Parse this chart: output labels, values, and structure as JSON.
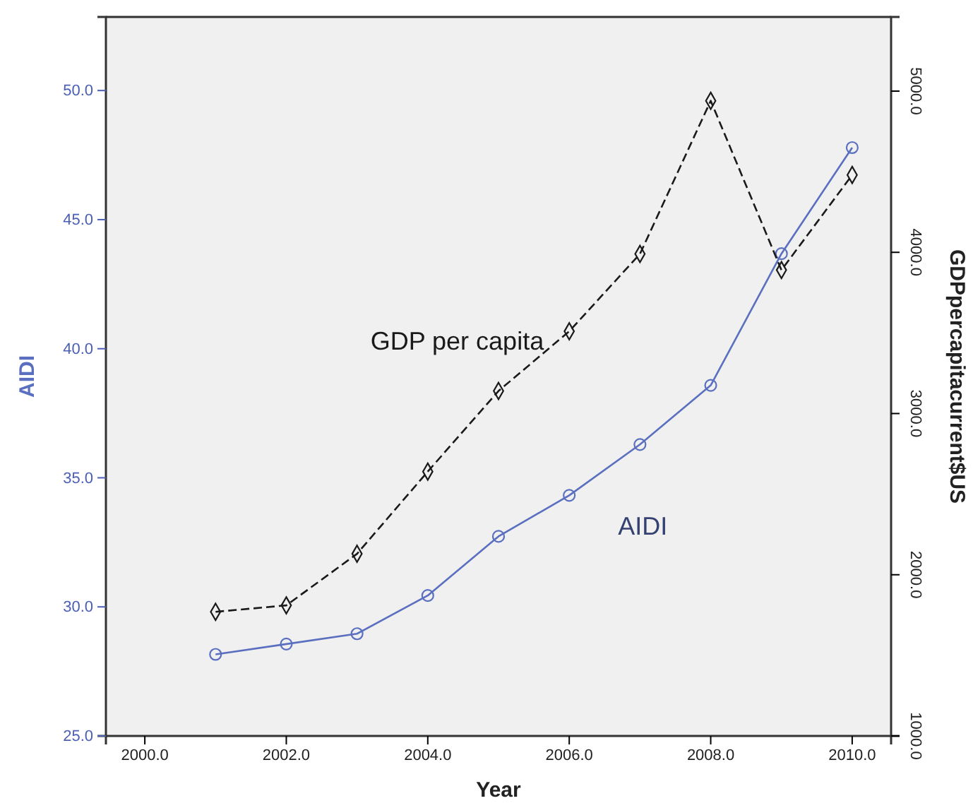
{
  "chart_data": {
    "type": "line",
    "xlabel": "Year",
    "ylabel": "AIDI",
    "y2label": "GDPpercapitacurrent$US",
    "x": [
      2001,
      2002,
      2003,
      2004,
      2005,
      2006,
      2007,
      2008,
      2009,
      2010
    ],
    "series": [
      {
        "name": "AIDI",
        "color": "#5b6fc0",
        "marker": "circle",
        "line_style": "solid",
        "values": [
          28.16,
          28.56,
          28.96,
          30.44,
          32.73,
          34.32,
          36.29,
          38.58,
          43.68,
          47.79
        ]
      },
      {
        "name": "GDP per capita",
        "color": "#1a1a1a",
        "marker": "diamond",
        "line_style": "dashed",
        "axis": "y2",
        "values": [
          1770,
          1810,
          2130,
          2640,
          3140,
          3510,
          3990,
          4940,
          3890,
          4480
        ]
      }
    ],
    "xlim": [
      1999.45,
      2010.55
    ],
    "xticks": [
      {
        "value": 2000,
        "label": "2000.0"
      },
      {
        "value": 2002,
        "label": "2002.0"
      },
      {
        "value": 2004,
        "label": "2004.0"
      },
      {
        "value": 2006,
        "label": "2006.0"
      },
      {
        "value": 2008,
        "label": "2008.0"
      },
      {
        "value": 2010,
        "label": "2010.0"
      }
    ],
    "ylim": [
      25,
      52.85
    ],
    "yticks": [
      {
        "value": 25,
        "label": "25.0"
      },
      {
        "value": 30,
        "label": "30.0"
      },
      {
        "value": 35,
        "label": "35.0"
      },
      {
        "value": 40,
        "label": "40.0"
      },
      {
        "value": 45,
        "label": "45.0"
      },
      {
        "value": 50,
        "label": "50.0"
      }
    ],
    "y2lim": [
      1000,
      5460
    ],
    "y2ticks": [
      {
        "value": 1000,
        "label": "1000.0"
      },
      {
        "value": 2000,
        "label": "2000.0"
      },
      {
        "value": 3000,
        "label": "3000.0"
      },
      {
        "value": 4000,
        "label": "4000.0"
      },
      {
        "value": 5000,
        "label": "5000.0"
      }
    ],
    "grid": false,
    "legend": false
  }
}
